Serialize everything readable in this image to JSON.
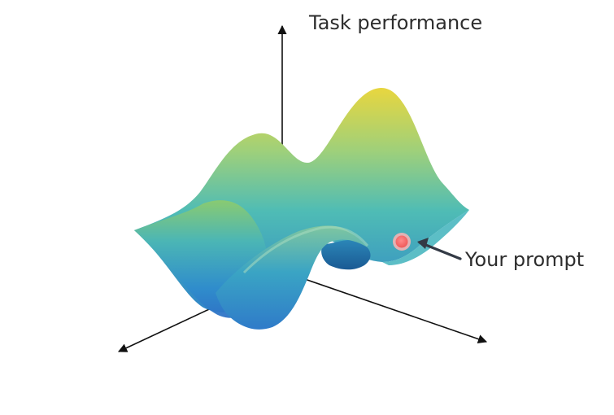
{
  "diagram": {
    "axis_label_vertical": "Task performance",
    "annotation_label": "Your prompt",
    "marker": "current-prompt-point"
  },
  "colors": {
    "axis": "#111111",
    "surface_low": "#2f78c9",
    "surface_mid_blue": "#3aa9c6",
    "surface_mid_green": "#7bc57b",
    "surface_peak": "#e6d33e",
    "surface_shadow": "#1d5f95",
    "marker_fill": "#ff6b6b",
    "marker_ring": "#ffb0b0",
    "arrow": "#333a45",
    "text": "#2d2d2d"
  }
}
